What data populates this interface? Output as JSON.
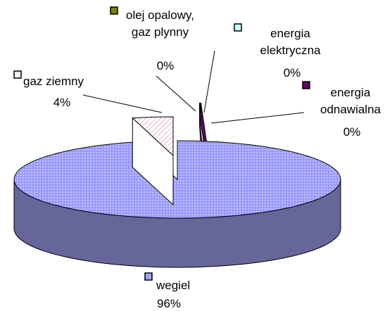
{
  "chart_data": {
    "type": "pie",
    "categories": [
      "olej opalowy, gaz plynny",
      "energia elektryczna",
      "energia odnawialna",
      "wegiel",
      "gaz ziemny"
    ],
    "values": [
      0,
      0,
      0,
      96,
      4
    ],
    "value_labels": [
      "0%",
      "0%",
      "0%",
      "96%",
      "4%"
    ],
    "colors": [
      "#808000",
      "#ccffff",
      "#660066",
      "#9999ff",
      "#ffffff"
    ]
  }
}
